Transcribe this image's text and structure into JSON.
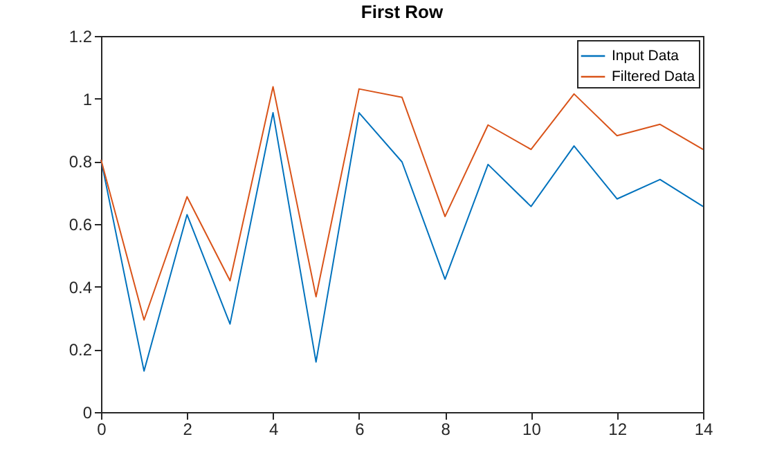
{
  "chart_data": {
    "type": "line",
    "title": "First Row",
    "x": [
      0,
      1,
      2,
      3,
      4,
      5,
      6,
      7,
      8,
      9,
      10,
      11,
      12,
      13,
      14
    ],
    "series": [
      {
        "name": "Input Data",
        "color": "#0072bd",
        "values": [
          0.805,
          0.131,
          0.63,
          0.281,
          0.955,
          0.16,
          0.955,
          0.798,
          0.424,
          0.79,
          0.656,
          0.849,
          0.68,
          0.742,
          0.656
        ]
      },
      {
        "name": "Filtered Data",
        "color": "#d95319",
        "values": [
          0.805,
          0.294,
          0.687,
          0.419,
          1.038,
          0.368,
          1.031,
          1.004,
          0.624,
          0.916,
          0.838,
          1.015,
          0.882,
          0.918,
          0.838
        ]
      }
    ],
    "xlim": [
      0,
      14
    ],
    "xticks": [
      0,
      2,
      4,
      6,
      8,
      10,
      12,
      14
    ],
    "ylim": [
      0,
      1.2
    ],
    "yticks": [
      0,
      0.2,
      0.4,
      0.6,
      0.8,
      1,
      1.2
    ],
    "legend": "top right",
    "grid": false,
    "marker": "none",
    "line_style": "solid"
  }
}
